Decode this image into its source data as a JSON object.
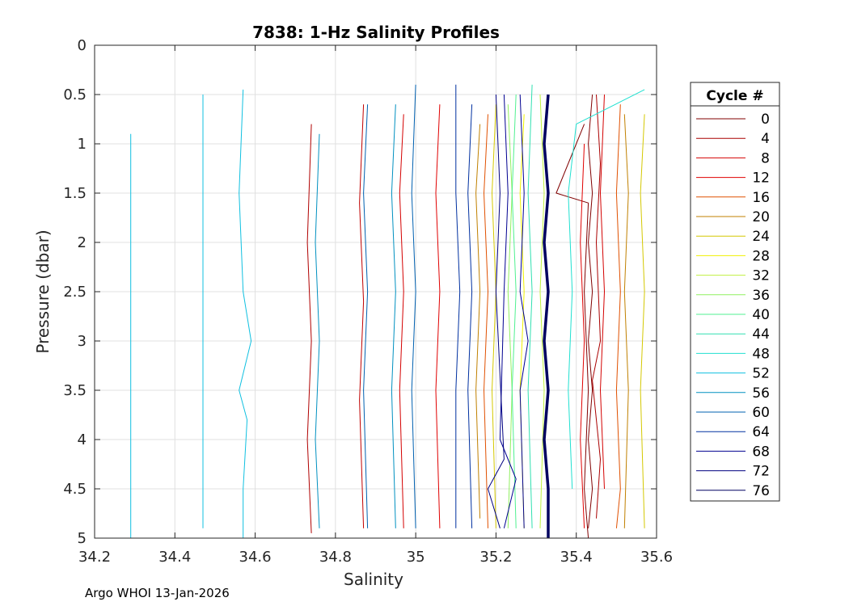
{
  "chart_data": {
    "type": "line",
    "title": "7838: 1-Hz Salinity Profiles",
    "xlabel": "Salinity",
    "ylabel": "Pressure (dbar)",
    "xlim": [
      34.2,
      35.6
    ],
    "ylim": [
      0,
      5
    ],
    "y_reversed": true,
    "grid": true,
    "x_ticks": [
      "34.2",
      "34.4",
      "34.6",
      "34.8",
      "35",
      "35.2",
      "35.4",
      "35.6"
    ],
    "y_ticks": [
      "0",
      "0.5",
      "1",
      "1.5",
      "2",
      "2.5",
      "3",
      "3.5",
      "4",
      "4.5",
      "5"
    ],
    "legend": {
      "title": "Cycle #",
      "placement": "right",
      "entries": [
        "0",
        "4",
        "8",
        "12",
        "16",
        "20",
        "24",
        "28",
        "32",
        "36",
        "40",
        "44",
        "48",
        "52",
        "56",
        "60",
        "64",
        "68",
        "72",
        "76"
      ],
      "colors": [
        "#800000",
        "#aa0000",
        "#d40000",
        "#e00000",
        "#e05000",
        "#c08000",
        "#d4c800",
        "#f0f000",
        "#c0f040",
        "#90f060",
        "#50f090",
        "#30e0b0",
        "#20e0d0",
        "#10c0e0",
        "#0090c0",
        "#0060b0",
        "#0030a0",
        "#000090",
        "#000080",
        "#000060"
      ]
    },
    "series": [
      {
        "color": "#800000",
        "values": [
          [
            35.44,
            0.5
          ],
          [
            35.43,
            1.0
          ],
          [
            35.44,
            1.5
          ],
          [
            35.43,
            2.0
          ],
          [
            35.44,
            2.5
          ],
          [
            35.43,
            3.0
          ],
          [
            35.44,
            3.5
          ],
          [
            35.43,
            4.0
          ],
          [
            35.44,
            4.5
          ],
          [
            35.43,
            4.9
          ]
        ]
      },
      {
        "color": "#800000",
        "values": [
          [
            35.42,
            0.8
          ],
          [
            35.35,
            1.5
          ],
          [
            35.43,
            1.6
          ],
          [
            35.42,
            2.5
          ],
          [
            35.43,
            3.5
          ],
          [
            35.42,
            4.5
          ],
          [
            35.43,
            5.0
          ]
        ]
      },
      {
        "color": "#aa0000",
        "values": [
          [
            35.45,
            0.5
          ],
          [
            35.46,
            1.2
          ],
          [
            35.45,
            2.0
          ],
          [
            35.46,
            3.0
          ],
          [
            35.44,
            3.4
          ],
          [
            35.46,
            4.2
          ],
          [
            35.45,
            4.8
          ]
        ]
      },
      {
        "color": "#d40000",
        "values": [
          [
            35.47,
            0.5
          ],
          [
            35.46,
            1.5
          ],
          [
            35.47,
            2.5
          ],
          [
            35.46,
            3.5
          ],
          [
            35.47,
            4.5
          ]
        ]
      },
      {
        "color": "#e00000",
        "values": [
          [
            35.42,
            1.0
          ],
          [
            35.41,
            2.0
          ],
          [
            35.42,
            3.0
          ],
          [
            35.41,
            4.0
          ],
          [
            35.42,
            4.9
          ]
        ]
      },
      {
        "color": "#e00000",
        "values": [
          [
            35.06,
            0.6
          ],
          [
            35.05,
            1.5
          ],
          [
            35.06,
            2.5
          ],
          [
            35.05,
            3.5
          ],
          [
            35.06,
            4.9
          ]
        ]
      },
      {
        "color": "#d40000",
        "values": [
          [
            34.97,
            0.7
          ],
          [
            34.96,
            1.5
          ],
          [
            34.97,
            2.5
          ],
          [
            34.96,
            3.5
          ],
          [
            34.97,
            4.9
          ]
        ]
      },
      {
        "color": "#c00000",
        "values": [
          [
            34.87,
            0.6
          ],
          [
            34.86,
            1.6
          ],
          [
            34.87,
            2.6
          ],
          [
            34.86,
            3.6
          ],
          [
            34.87,
            4.9
          ]
        ]
      },
      {
        "color": "#b00000",
        "values": [
          [
            34.74,
            0.8
          ],
          [
            34.73,
            2.0
          ],
          [
            34.74,
            3.0
          ],
          [
            34.73,
            4.0
          ],
          [
            34.74,
            4.95
          ]
        ]
      },
      {
        "color": "#e05000",
        "values": [
          [
            35.51,
            0.6
          ],
          [
            35.5,
            1.5
          ],
          [
            35.51,
            2.5
          ],
          [
            35.5,
            3.5
          ],
          [
            35.51,
            4.5
          ],
          [
            35.5,
            4.9
          ]
        ]
      },
      {
        "color": "#e05000",
        "values": [
          [
            35.18,
            0.7
          ],
          [
            35.17,
            1.5
          ],
          [
            35.18,
            2.5
          ],
          [
            35.17,
            3.5
          ],
          [
            35.18,
            4.9
          ]
        ]
      },
      {
        "color": "#c08000",
        "values": [
          [
            35.52,
            0.7
          ],
          [
            35.53,
            1.5
          ],
          [
            35.52,
            2.5
          ],
          [
            35.53,
            3.5
          ],
          [
            35.52,
            4.9
          ]
        ]
      },
      {
        "color": "#c08000",
        "values": [
          [
            35.16,
            0.8
          ],
          [
            35.15,
            1.5
          ],
          [
            35.16,
            2.5
          ],
          [
            35.15,
            3.5
          ],
          [
            35.16,
            4.8
          ]
        ]
      },
      {
        "color": "#d4c800",
        "values": [
          [
            35.57,
            0.7
          ],
          [
            35.56,
            1.5
          ],
          [
            35.57,
            2.5
          ],
          [
            35.56,
            3.5
          ],
          [
            35.57,
            4.9
          ]
        ]
      },
      {
        "color": "#d4c800",
        "values": [
          [
            35.2,
            0.6
          ],
          [
            35.19,
            1.5
          ],
          [
            35.2,
            2.5
          ],
          [
            35.19,
            3.5
          ],
          [
            35.2,
            4.9
          ]
        ]
      },
      {
        "color": "#f0f000",
        "values": [
          [
            35.27,
            0.7
          ],
          [
            35.26,
            1.5
          ],
          [
            35.27,
            2.5
          ],
          [
            35.26,
            3.5
          ],
          [
            35.27,
            4.9
          ]
        ]
      },
      {
        "color": "#c0f040",
        "values": [
          [
            35.31,
            0.5
          ],
          [
            35.32,
            1.5
          ],
          [
            35.31,
            2.5
          ],
          [
            35.32,
            3.5
          ],
          [
            35.31,
            4.9
          ]
        ]
      },
      {
        "color": "#90f060",
        "values": [
          [
            35.23,
            0.6
          ],
          [
            35.24,
            1.5
          ],
          [
            35.23,
            2.5
          ],
          [
            35.24,
            3.5
          ],
          [
            35.23,
            4.9
          ]
        ]
      },
      {
        "color": "#50f090",
        "values": [
          [
            35.25,
            0.5
          ],
          [
            35.24,
            1.5
          ],
          [
            35.25,
            2.5
          ],
          [
            35.24,
            3.5
          ],
          [
            35.25,
            4.9
          ]
        ]
      },
      {
        "color": "#30e0b0",
        "values": [
          [
            35.29,
            0.4
          ],
          [
            35.28,
            1.5
          ],
          [
            35.29,
            2.5
          ],
          [
            35.28,
            3.5
          ],
          [
            35.29,
            4.9
          ]
        ]
      },
      {
        "color": "#20e0d0",
        "values": [
          [
            35.57,
            0.45
          ],
          [
            35.4,
            0.8
          ],
          [
            35.38,
            1.5
          ],
          [
            35.39,
            2.5
          ],
          [
            35.38,
            3.5
          ],
          [
            35.39,
            4.5
          ]
        ]
      },
      {
        "color": "#10c0e0",
        "values": [
          [
            34.57,
            0.45
          ],
          [
            34.56,
            1.5
          ],
          [
            34.57,
            2.5
          ],
          [
            34.59,
            3.0
          ],
          [
            34.56,
            3.5
          ],
          [
            34.58,
            3.8
          ],
          [
            34.57,
            4.5
          ],
          [
            34.57,
            5.0
          ]
        ]
      },
      {
        "color": "#10c0e0",
        "values": [
          [
            34.29,
            0.9
          ],
          [
            34.29,
            2.0
          ],
          [
            34.29,
            3.0
          ],
          [
            34.29,
            4.0
          ],
          [
            34.29,
            5.0
          ]
        ]
      },
      {
        "color": "#10c0e0",
        "values": [
          [
            34.47,
            0.5
          ],
          [
            34.47,
            1.5
          ],
          [
            34.47,
            2.5
          ],
          [
            34.47,
            3.5
          ],
          [
            34.47,
            4.9
          ]
        ]
      },
      {
        "color": "#0090c0",
        "values": [
          [
            34.76,
            0.9
          ],
          [
            34.75,
            2.0
          ],
          [
            34.76,
            3.0
          ],
          [
            34.75,
            4.0
          ],
          [
            34.76,
            4.9
          ]
        ]
      },
      {
        "color": "#0090c0",
        "values": [
          [
            34.95,
            0.6
          ],
          [
            34.94,
            1.5
          ],
          [
            34.95,
            2.5
          ],
          [
            34.94,
            3.5
          ],
          [
            34.95,
            4.9
          ]
        ]
      },
      {
        "color": "#0060b0",
        "values": [
          [
            35.0,
            0.4
          ],
          [
            34.99,
            1.5
          ],
          [
            35.0,
            2.5
          ],
          [
            34.99,
            3.5
          ],
          [
            35.0,
            4.9
          ]
        ]
      },
      {
        "color": "#0060b0",
        "values": [
          [
            34.88,
            0.6
          ],
          [
            34.87,
            1.5
          ],
          [
            34.88,
            2.5
          ],
          [
            34.87,
            3.5
          ],
          [
            34.88,
            4.9
          ]
        ]
      },
      {
        "color": "#0030a0",
        "values": [
          [
            35.1,
            0.4
          ],
          [
            35.1,
            1.5
          ],
          [
            35.11,
            2.5
          ],
          [
            35.1,
            3.5
          ],
          [
            35.1,
            4.9
          ]
        ]
      },
      {
        "color": "#0030a0",
        "values": [
          [
            35.14,
            0.6
          ],
          [
            35.13,
            1.5
          ],
          [
            35.14,
            2.5
          ],
          [
            35.13,
            3.5
          ],
          [
            35.14,
            4.9
          ]
        ]
      },
      {
        "color": "#000090",
        "values": [
          [
            35.22,
            0.5
          ],
          [
            35.23,
            1.5
          ],
          [
            35.22,
            2.5
          ],
          [
            35.21,
            4.0
          ],
          [
            35.25,
            4.4
          ],
          [
            35.22,
            4.9
          ]
        ]
      },
      {
        "color": "#000090",
        "values": [
          [
            35.26,
            0.5
          ],
          [
            35.27,
            1.5
          ],
          [
            35.26,
            2.5
          ],
          [
            35.28,
            3.0
          ],
          [
            35.26,
            3.5
          ],
          [
            35.27,
            4.9
          ]
        ]
      },
      {
        "color": "#000080",
        "values": [
          [
            35.2,
            0.5
          ],
          [
            35.21,
            1.5
          ],
          [
            35.2,
            2.5
          ],
          [
            35.22,
            4.2
          ],
          [
            35.18,
            4.5
          ],
          [
            35.21,
            4.9
          ]
        ]
      },
      {
        "color": "#000060",
        "values": [
          [
            35.33,
            0.5
          ],
          [
            35.32,
            1.0
          ],
          [
            35.33,
            1.5
          ],
          [
            35.32,
            2.0
          ],
          [
            35.33,
            2.5
          ],
          [
            35.32,
            3.0
          ],
          [
            35.33,
            3.5
          ],
          [
            35.32,
            4.0
          ],
          [
            35.33,
            4.5
          ],
          [
            35.33,
            5.0
          ]
        ]
      }
    ]
  },
  "footer": "Argo WHOI 13-Jan-2026"
}
